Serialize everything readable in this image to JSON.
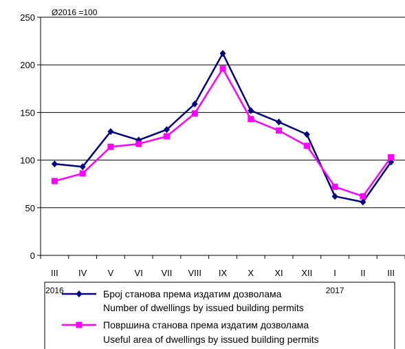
{
  "chart_data": {
    "type": "line",
    "annotation": "Ø2016 =100",
    "categories": [
      "III",
      "IV",
      "V",
      "VI",
      "VII",
      "VIII",
      "IX",
      "X",
      "XI",
      "XII",
      "I",
      "II",
      "III"
    ],
    "year_labels": [
      {
        "label": "2016",
        "category_index": 0
      },
      {
        "label": "2017",
        "category_index": 10
      }
    ],
    "ylim": [
      0,
      250
    ],
    "yticks": [
      0,
      50,
      100,
      150,
      200,
      250
    ],
    "grid": true,
    "legend_position": "bottom",
    "series": [
      {
        "name_line1": "Број станова према издатим дозволама",
        "name_line2": "Number of dwellings by issued building permits",
        "color": "#000080",
        "marker": "diamond",
        "values": [
          96,
          93,
          130,
          121,
          132,
          159,
          212,
          152,
          140,
          127,
          62,
          56,
          98
        ]
      },
      {
        "name_line1": "Површина станова према издатим дозволама",
        "name_line2": "Useful area of dwellings by issued building permits",
        "color": "#ff00ff",
        "marker": "square",
        "values": [
          78,
          86,
          114,
          117,
          125,
          149,
          196,
          143,
          131,
          115,
          72,
          62,
          103
        ]
      }
    ]
  }
}
